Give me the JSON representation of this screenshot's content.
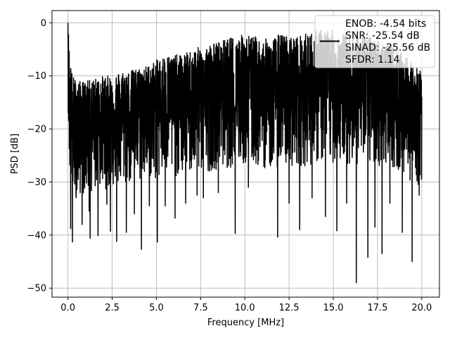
{
  "chart_data": {
    "type": "line",
    "title": "",
    "xlabel": "Frequency [MHz]",
    "ylabel": "PSD [dB]",
    "xlim": [
      -0.9,
      21.0
    ],
    "ylim": [
      -51.7,
      2.3
    ],
    "xticks": [
      0.0,
      2.5,
      5.0,
      7.5,
      10.0,
      12.5,
      15.0,
      17.5,
      20.0
    ],
    "xtick_labels": [
      "0.0",
      "2.5",
      "5.0",
      "7.5",
      "10.0",
      "12.5",
      "15.0",
      "17.5",
      "20.0"
    ],
    "yticks": [
      0,
      -10,
      -20,
      -30,
      -40,
      -50
    ],
    "ytick_labels": [
      "0",
      "−10",
      "−20",
      "−30",
      "−40",
      "−50"
    ],
    "grid": true,
    "legend": {
      "placement": "top-right",
      "entries": [
        "ENOB: -4.54 bits",
        "SNR: -25.54 dB",
        "SINAD: -25.56 dB",
        "SFDR: 1.14"
      ]
    },
    "series": [
      {
        "color": "#000000",
        "x": [
          0.0,
          0.05,
          0.1,
          0.2,
          0.3,
          0.5,
          0.7,
          1.0,
          1.5,
          2.0,
          2.5,
          3.0,
          3.5,
          4.0,
          4.5,
          5.0,
          5.5,
          6.0,
          6.5,
          7.0,
          7.5,
          8.0,
          8.5,
          9.0,
          9.5,
          10.0,
          10.5,
          11.0,
          11.5,
          12.0,
          12.5,
          13.0,
          13.5,
          14.0,
          14.5,
          15.0,
          15.5,
          16.0,
          16.5,
          17.0,
          17.5,
          18.0,
          18.5,
          19.0,
          19.5,
          20.0
        ],
        "upper": [
          0,
          -3,
          -6,
          -9,
          -10,
          -11,
          -11,
          -11,
          -10.5,
          -10,
          -10,
          -9,
          -9,
          -8.5,
          -8,
          -7,
          -6,
          -6,
          -6,
          -5,
          -4.5,
          -4,
          -3.5,
          -3,
          -2.5,
          -2,
          -2.5,
          -3,
          -3,
          -2,
          -2.5,
          -2.5,
          -2,
          -1.5,
          -1,
          -1.5,
          -2,
          -2,
          -2,
          -2.5,
          -3,
          -3.5,
          -5,
          -6,
          -8,
          -9
        ],
        "mean": [
          0,
          -10,
          -15,
          -18,
          -19,
          -19,
          -18.5,
          -18,
          -18,
          -17.5,
          -17,
          -17,
          -16.5,
          -16,
          -16,
          -15.5,
          -15,
          -15,
          -15,
          -14.5,
          -14,
          -14,
          -13.5,
          -13.5,
          -13,
          -13,
          -13,
          -13.5,
          -13.5,
          -13,
          -13,
          -13,
          -13,
          -12.5,
          -12.5,
          -12.5,
          -12.5,
          -12.5,
          -13,
          -13,
          -13,
          -13.5,
          -14,
          -15,
          -16,
          -17
        ],
        "dips": [
          {
            "x": 0.25,
            "y": -41.3
          },
          {
            "x": 0.15,
            "y": -38.8
          },
          {
            "x": 0.45,
            "y": -32.3
          },
          {
            "x": 0.8,
            "y": -38.0
          },
          {
            "x": 1.2,
            "y": -35.5
          },
          {
            "x": 1.25,
            "y": -40.6
          },
          {
            "x": 1.7,
            "y": -40.1
          },
          {
            "x": 2.2,
            "y": -34.2
          },
          {
            "x": 2.4,
            "y": -39.3
          },
          {
            "x": 2.75,
            "y": -41.2
          },
          {
            "x": 3.3,
            "y": -39.5
          },
          {
            "x": 3.75,
            "y": -36.0
          },
          {
            "x": 4.15,
            "y": -42.7
          },
          {
            "x": 4.6,
            "y": -34.5
          },
          {
            "x": 5.05,
            "y": -41.3
          },
          {
            "x": 5.5,
            "y": -34.5
          },
          {
            "x": 6.05,
            "y": -36.8
          },
          {
            "x": 6.65,
            "y": -34.0
          },
          {
            "x": 7.3,
            "y": -32.5
          },
          {
            "x": 7.65,
            "y": -33.0
          },
          {
            "x": 8.5,
            "y": -32.0
          },
          {
            "x": 9.45,
            "y": -39.7
          },
          {
            "x": 10.2,
            "y": -31.0
          },
          {
            "x": 11.85,
            "y": -40.4
          },
          {
            "x": 12.5,
            "y": -34.0
          },
          {
            "x": 13.1,
            "y": -39.0
          },
          {
            "x": 13.8,
            "y": -33.0
          },
          {
            "x": 14.55,
            "y": -36.5
          },
          {
            "x": 15.2,
            "y": -39.2
          },
          {
            "x": 15.75,
            "y": -34.0
          },
          {
            "x": 16.3,
            "y": -49.0
          },
          {
            "x": 16.95,
            "y": -44.2
          },
          {
            "x": 17.35,
            "y": -38.5
          },
          {
            "x": 17.75,
            "y": -43.5
          },
          {
            "x": 18.2,
            "y": -34.0
          },
          {
            "x": 18.9,
            "y": -39.5
          },
          {
            "x": 19.45,
            "y": -45.0
          },
          {
            "x": 19.85,
            "y": -32.5
          }
        ]
      }
    ]
  }
}
